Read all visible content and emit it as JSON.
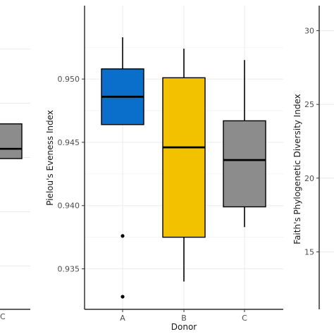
{
  "chart_data": [
    {
      "type": "boxplot",
      "panel": "left (partially visible)",
      "categories": [
        "C"
      ],
      "boxes": [
        {
          "category": "C",
          "color": "#8c8c8c",
          "median": 0.9458,
          "q1": 0.9449,
          "q3": 0.9481
        }
      ],
      "ylim": [
        0.931,
        0.959
      ],
      "grid": true
    },
    {
      "type": "boxplot",
      "panel": "center",
      "xlabel": "Donor",
      "ylabel": "Pielou's Eveness Index",
      "categories": [
        "A",
        "B",
        "C"
      ],
      "y_ticks": [
        "0.935",
        "0.940",
        "0.945",
        "0.950"
      ],
      "ylim": [
        0.9318,
        0.9558
      ],
      "grid": true,
      "boxes": [
        {
          "category": "A",
          "color": "#0a6ecb",
          "min": 0.9464,
          "q1": 0.9464,
          "median": 0.9486,
          "q3": 0.9508,
          "max": 0.9533,
          "outliers": [
            0.9376,
            0.9328
          ]
        },
        {
          "category": "B",
          "color": "#f2c200",
          "min": 0.934,
          "q1": 0.9375,
          "median": 0.9446,
          "q3": 0.9501,
          "max": 0.9524,
          "outliers": []
        },
        {
          "category": "C",
          "color": "#8c8c8c",
          "min": 0.9383,
          "q1": 0.9399,
          "median": 0.9436,
          "q3": 0.9467,
          "max": 0.9515,
          "outliers": []
        }
      ]
    },
    {
      "type": "boxplot",
      "panel": "right (axis only visible)",
      "ylabel": "Faith's Phylogenetic Diversity Index",
      "y_ticks": [
        "15",
        "20",
        "25",
        "30"
      ],
      "ylim": [
        11.1,
        31.7
      ],
      "grid": true
    }
  ]
}
